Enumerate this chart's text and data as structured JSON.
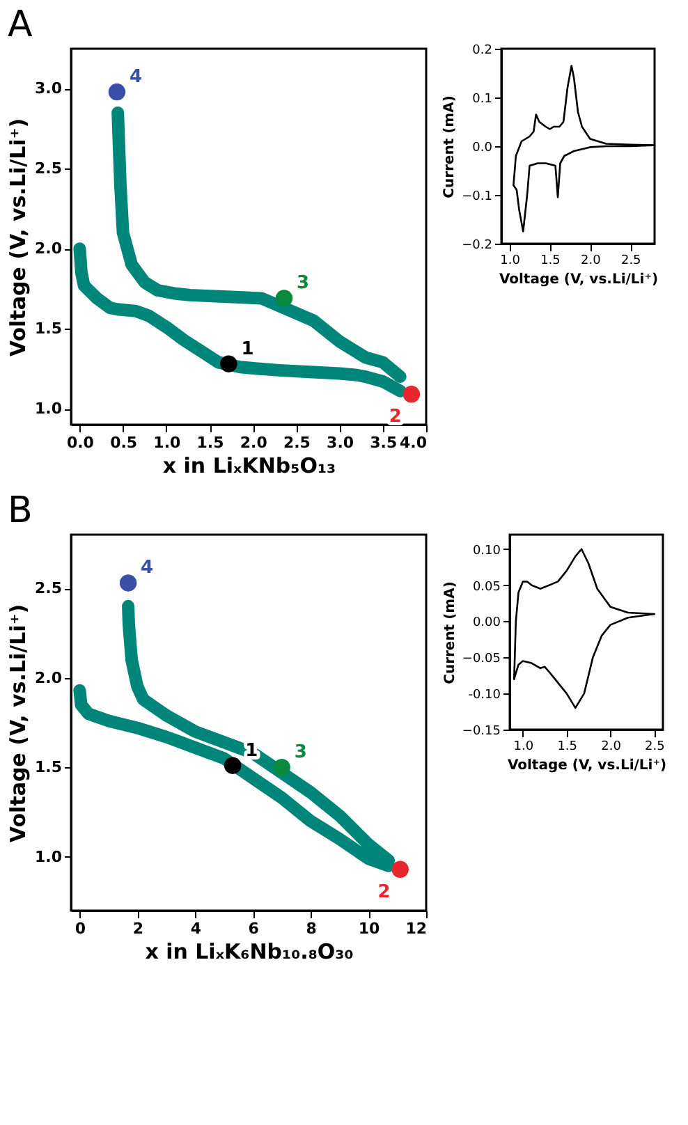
{
  "chart_data": [
    {
      "type": "line",
      "title": "A",
      "xlabel": "x in LiₓKNb₅O₁₃",
      "ylabel": "Voltage (V, vs.Li/Li⁺)",
      "xlim": [
        -0.1,
        4.0
      ],
      "ylim": [
        0.9,
        3.25
      ],
      "xticks": [
        {
          "value": 0,
          "label": "0.0"
        },
        0.5,
        {
          "value": 1,
          "label": "1.0"
        },
        1.5,
        {
          "value": 2,
          "label": "2.0"
        },
        2.5,
        {
          "value": 3,
          "label": "3.0"
        },
        3.5,
        {
          "value": 4,
          "label": "4.0"
        }
      ],
      "yticks": [
        {
          "value": 1,
          "label": "1.0"
        },
        1.5,
        {
          "value": 2,
          "label": "2.0"
        },
        2.5,
        {
          "value": 3,
          "label": "3.0"
        }
      ],
      "series": [
        {
          "type": "line",
          "color": "#00857a",
          "x": [
            0,
            0.02,
            0.05,
            0.2,
            0.35,
            0.45,
            0.65,
            0.8,
            1.0,
            1.2,
            1.4,
            1.6,
            1.85,
            2.05,
            2.3,
            2.65,
            3.0,
            3.2,
            3.3,
            3.5,
            3.7
          ],
          "values": [
            2.0,
            1.85,
            1.77,
            1.69,
            1.63,
            1.62,
            1.61,
            1.58,
            1.51,
            1.43,
            1.36,
            1.29,
            1.26,
            1.25,
            1.24,
            1.23,
            1.22,
            1.21,
            1.2,
            1.17,
            1.11
          ]
        },
        {
          "type": "line",
          "color": "#00857a",
          "x": [
            3.7,
            3.5,
            3.3,
            3.0,
            2.7,
            2.1,
            1.7,
            1.27,
            1.1,
            0.9,
            0.75,
            0.6,
            0.5,
            0.47,
            0.45,
            0.44
          ],
          "values": [
            1.2,
            1.29,
            1.32,
            1.42,
            1.55,
            1.69,
            1.7,
            1.71,
            1.72,
            1.74,
            1.79,
            1.9,
            2.1,
            2.4,
            2.7,
            2.85
          ]
        },
        {
          "type": "scatter",
          "name": "1",
          "color": "#000000",
          "x": [
            1.72
          ],
          "values": [
            1.28
          ]
        },
        {
          "type": "scatter",
          "name": "2",
          "color": "#e8262e",
          "x": [
            3.83
          ],
          "values": [
            1.09
          ]
        },
        {
          "type": "scatter",
          "name": "3",
          "color": "#0a8a3c",
          "x": [
            2.36
          ],
          "values": [
            1.69
          ]
        },
        {
          "type": "scatter",
          "name": "4",
          "color": "#3a4fa8",
          "x": [
            0.43
          ],
          "values": [
            2.98
          ]
        }
      ]
    },
    {
      "type": "line",
      "xlabel": "Voltage (V, vs.Li/Li⁺)",
      "ylabel": "Current (mA)",
      "xlim": [
        0.9,
        2.8
      ],
      "ylim": [
        -0.2,
        0.2
      ],
      "xticks": [
        {
          "value": 1,
          "label": "1.0"
        },
        1.5,
        {
          "value": 2,
          "label": "2.0"
        },
        2.5
      ],
      "yticks": [
        -0.2,
        -0.1,
        {
          "value": 0,
          "label": "0.0"
        },
        0.1,
        0.2
      ],
      "series": [
        {
          "type": "line",
          "color": "#000000",
          "x": [
            1.05,
            1.08,
            1.15,
            1.25,
            1.3,
            1.33,
            1.37,
            1.45,
            1.5,
            1.55,
            1.62,
            1.67,
            1.72,
            1.77,
            1.8,
            1.85,
            1.9,
            2.0,
            2.2,
            2.5,
            2.78
          ],
          "values": [
            -0.08,
            -0.02,
            0.01,
            0.02,
            0.03,
            0.065,
            0.05,
            0.04,
            0.035,
            0.04,
            0.04,
            0.05,
            0.12,
            0.165,
            0.14,
            0.07,
            0.04,
            0.015,
            0.005,
            0.003,
            0.002
          ]
        },
        {
          "type": "line",
          "color": "#000000",
          "x": [
            2.78,
            2.5,
            2.2,
            2.0,
            1.8,
            1.68,
            1.63,
            1.6,
            1.57,
            1.45,
            1.35,
            1.25,
            1.22,
            1.17,
            1.12,
            1.09,
            1.05
          ],
          "values": [
            0.002,
            0.0,
            0.0,
            -0.002,
            -0.01,
            -0.02,
            -0.035,
            -0.105,
            -0.04,
            -0.035,
            -0.035,
            -0.04,
            -0.1,
            -0.175,
            -0.13,
            -0.09,
            -0.08
          ]
        }
      ]
    },
    {
      "type": "line",
      "title": "B",
      "xlabel": "x in LiₓK₆Nb₁₀.₈O₃₀",
      "ylabel": "Voltage (V, vs.Li/Li⁺)",
      "xlim": [
        -0.3,
        12
      ],
      "ylim": [
        0.7,
        2.8
      ],
      "xticks": [
        0,
        2,
        4,
        6,
        8,
        10,
        12
      ],
      "yticks": [
        {
          "value": 1,
          "label": "1.0"
        },
        1.5,
        {
          "value": 2,
          "label": "2.0"
        },
        2.5
      ],
      "series": [
        {
          "type": "line",
          "color": "#00857a",
          "x": [
            0,
            0.05,
            0.3,
            1,
            2,
            3,
            4,
            5,
            6,
            7,
            8,
            9,
            10,
            10.7
          ],
          "values": [
            1.93,
            1.85,
            1.8,
            1.76,
            1.72,
            1.67,
            1.61,
            1.55,
            1.44,
            1.33,
            1.2,
            1.1,
            0.99,
            0.95
          ]
        },
        {
          "type": "line",
          "color": "#00857a",
          "x": [
            10.7,
            10,
            9,
            8,
            6,
            5,
            4,
            3,
            2.2,
            2,
            1.8,
            1.7,
            1.68
          ],
          "values": [
            0.98,
            1.07,
            1.23,
            1.36,
            1.58,
            1.64,
            1.7,
            1.79,
            1.88,
            1.95,
            2.1,
            2.3,
            2.4
          ]
        },
        {
          "type": "scatter",
          "name": "1",
          "color": "#000000",
          "x": [
            5.3
          ],
          "values": [
            1.51
          ]
        },
        {
          "type": "scatter",
          "name": "2",
          "color": "#e8262e",
          "x": [
            11.1
          ],
          "values": [
            0.93
          ]
        },
        {
          "type": "scatter",
          "name": "3",
          "color": "#0a8a3c",
          "x": [
            7.0
          ],
          "values": [
            1.5
          ]
        },
        {
          "type": "scatter",
          "name": "4",
          "color": "#3a4fa8",
          "x": [
            1.68
          ],
          "values": [
            2.53
          ]
        }
      ]
    },
    {
      "type": "line",
      "xlabel": "Voltage (V, vs.Li/Li⁺)",
      "ylabel": "Current (mA)",
      "xlim": [
        0.85,
        2.6
      ],
      "ylim": [
        -0.15,
        0.12
      ],
      "xticks": [
        {
          "value": 1,
          "label": "1.0"
        },
        1.5,
        {
          "value": 2,
          "label": "2.0"
        },
        2.5
      ],
      "yticks": [
        -0.15,
        {
          "value": -0.1,
          "label": "-0.10"
        },
        -0.05,
        {
          "value": 0,
          "label": "0.00"
        },
        0.05,
        {
          "value": 0.1,
          "label": "0.10"
        }
      ],
      "series": [
        {
          "type": "line",
          "color": "#000000",
          "x": [
            0.9,
            0.92,
            0.95,
            1.0,
            1.05,
            1.1,
            1.2,
            1.3,
            1.4,
            1.5,
            1.6,
            1.67,
            1.75,
            1.85,
            2.0,
            2.2,
            2.5
          ],
          "values": [
            -0.08,
            0.0,
            0.04,
            0.055,
            0.055,
            0.05,
            0.045,
            0.05,
            0.055,
            0.07,
            0.09,
            0.1,
            0.08,
            0.045,
            0.02,
            0.012,
            0.01
          ]
        },
        {
          "type": "line",
          "color": "#000000",
          "x": [
            2.5,
            2.2,
            2.0,
            1.9,
            1.8,
            1.7,
            1.6,
            1.5,
            1.4,
            1.3,
            1.25,
            1.2,
            1.1,
            1.0,
            0.95,
            0.9
          ],
          "values": [
            0.01,
            0.005,
            -0.005,
            -0.02,
            -0.05,
            -0.1,
            -0.12,
            -0.1,
            -0.085,
            -0.07,
            -0.063,
            -0.065,
            -0.058,
            -0.055,
            -0.06,
            -0.08
          ]
        }
      ]
    }
  ]
}
